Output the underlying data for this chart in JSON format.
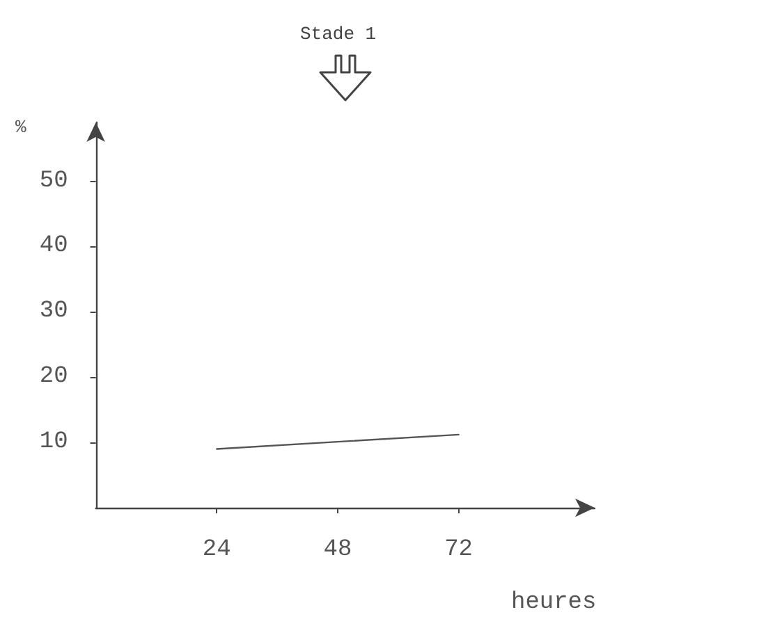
{
  "chart_data": {
    "type": "line",
    "xlabel": "heures",
    "ylabel": "%",
    "x": [
      24,
      72
    ],
    "series": [
      {
        "color": "#555555",
        "values": [
          9,
          11.2
        ]
      }
    ],
    "xlim": [
      0,
      99
    ],
    "ylim": [
      0,
      59
    ],
    "xticks": [
      24,
      48,
      72
    ],
    "yticks": [
      10,
      20,
      30,
      40,
      50
    ],
    "annotations": [
      "Stade 1"
    ],
    "grid": false,
    "marker": "none",
    "line_style": "solid"
  }
}
